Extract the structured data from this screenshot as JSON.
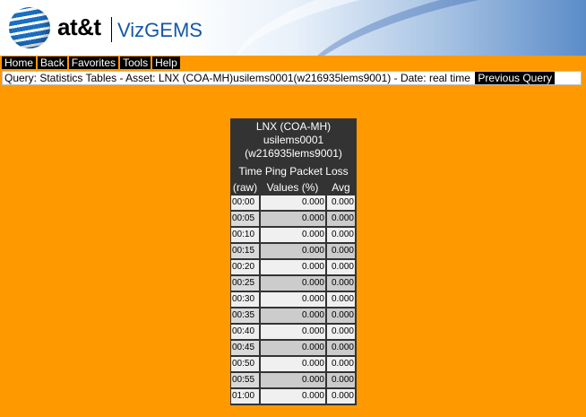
{
  "header": {
    "brand": "at&t",
    "product": "VizGEMS"
  },
  "menu": {
    "items": [
      "Home",
      "Back",
      "Favorites",
      "Tools",
      "Help"
    ]
  },
  "query": {
    "text": "Query: Statistics Tables - Asset: LNX (COA-MH)usilems0001(w216935lems9001) - Date: real time",
    "button": "Previous Query"
  },
  "table": {
    "title_lines": [
      "LNX (COA-MH)",
      "usilems0001",
      "(w216935lems9001)"
    ],
    "subtitle": "Time Ping Packet Loss",
    "columns": [
      "(raw)",
      "Values (%)",
      "Avg"
    ],
    "rows": [
      {
        "time": "00:00",
        "value": "0.000",
        "avg": "0.000"
      },
      {
        "time": "00:05",
        "value": "0.000",
        "avg": "0.000"
      },
      {
        "time": "00:10",
        "value": "0.000",
        "avg": "0.000"
      },
      {
        "time": "00:15",
        "value": "0.000",
        "avg": "0.000"
      },
      {
        "time": "00:20",
        "value": "0.000",
        "avg": "0.000"
      },
      {
        "time": "00:25",
        "value": "0.000",
        "avg": "0.000"
      },
      {
        "time": "00:30",
        "value": "0.000",
        "avg": "0.000"
      },
      {
        "time": "00:35",
        "value": "0.000",
        "avg": "0.000"
      },
      {
        "time": "00:40",
        "value": "0.000",
        "avg": "0.000"
      },
      {
        "time": "00:45",
        "value": "0.000",
        "avg": "0.000"
      },
      {
        "time": "00:50",
        "value": "0.000",
        "avg": "0.000"
      },
      {
        "time": "00:55",
        "value": "0.000",
        "avg": "0.000"
      },
      {
        "time": "01:00",
        "value": "0.000",
        "avg": "0.000"
      }
    ]
  }
}
